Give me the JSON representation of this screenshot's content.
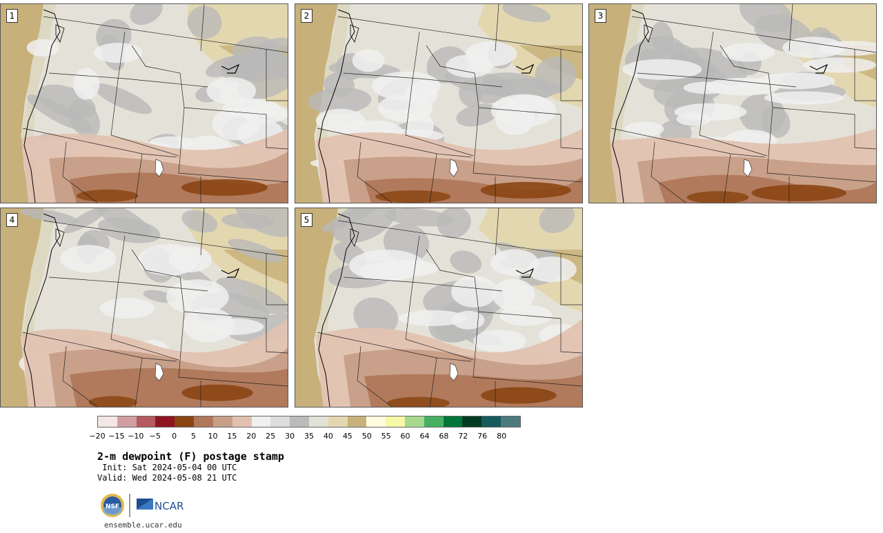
{
  "panels": [
    {
      "label": "1"
    },
    {
      "label": "2"
    },
    {
      "label": "3"
    },
    {
      "label": "4"
    },
    {
      "label": "5"
    }
  ],
  "colorbar": {
    "colors": [
      "#f5e6e6",
      "#d19ea3",
      "#b55a60",
      "#8e1520",
      "#8b4513",
      "#b0785a",
      "#c79e87",
      "#e1c2b1",
      "#f0f0f0",
      "#dddddd",
      "#bbbbbb",
      "#e2e1d5",
      "#e3d7b0",
      "#c8b27a",
      "#fdfce0",
      "#f7f7a8",
      "#a7d98e",
      "#45b063",
      "#00753a",
      "#003b22",
      "#175a5e",
      "#4c7a7c"
    ],
    "tick_labels": [
      "−20",
      "−15",
      "−10",
      "−5",
      "0",
      "5",
      "10",
      "15",
      "20",
      "25",
      "30",
      "35",
      "40",
      "45",
      "50",
      "55",
      "60",
      "64",
      "68",
      "72",
      "76",
      "80"
    ]
  },
  "title": "2-m dewpoint (F) postage stamp",
  "init": " Init: Sat 2024-05-04 00 UTC",
  "valid": "Valid: Wed 2024-05-08 21 UTC",
  "logos": {
    "nsf": "NSF",
    "ncar": "NCAR"
  },
  "website": "ensemble.ucar.edu"
}
